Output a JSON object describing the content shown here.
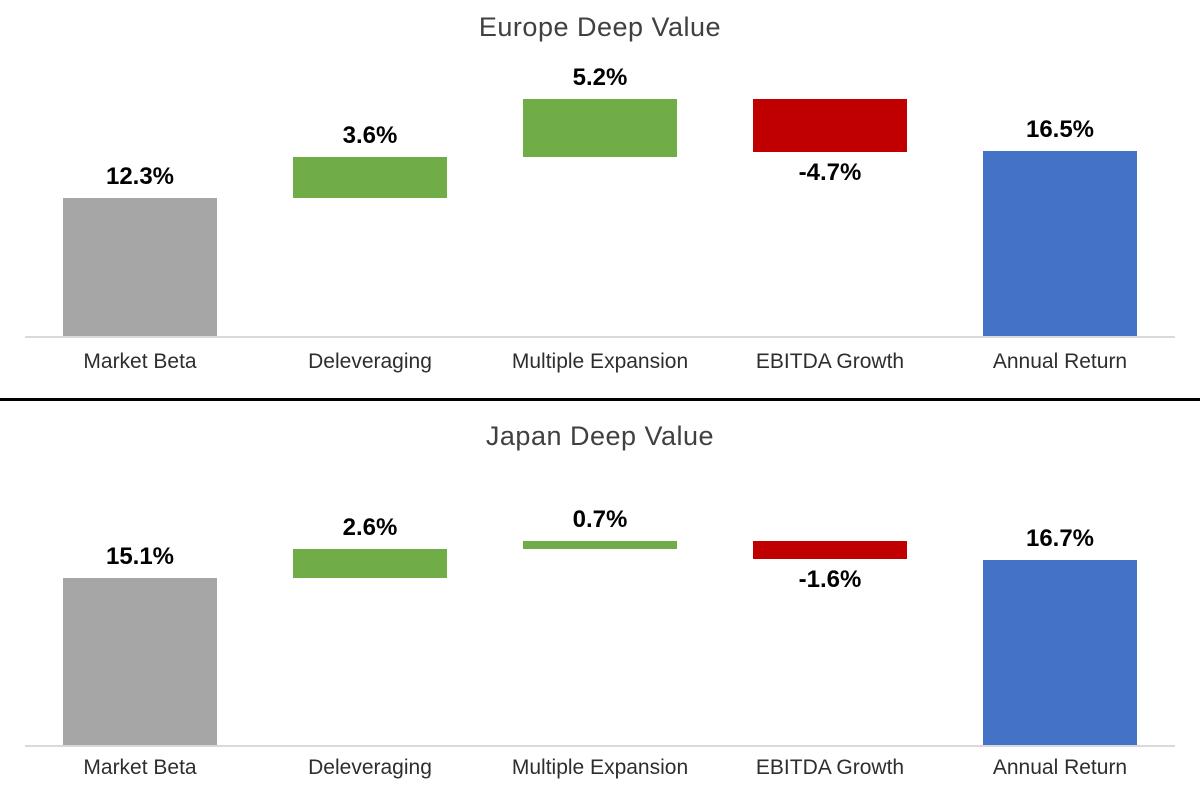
{
  "colors": {
    "base": "#A6A6A6",
    "increase": "#70AD47",
    "decrease": "#C00000",
    "total": "#4472C4",
    "baseline": "#D9D9D9",
    "divider": "#000000"
  },
  "chart_data": [
    {
      "type": "bar",
      "subtype": "waterfall",
      "title": "Europe Deep Value",
      "categories": [
        "Market Beta",
        "Deleveraging",
        "Multiple Expansion",
        "EBITDA Growth",
        "Annual Return"
      ],
      "values": [
        12.3,
        3.6,
        5.2,
        -4.7,
        16.5
      ],
      "value_labels": [
        "12.3%",
        "3.6%",
        "5.2%",
        "-4.7%",
        "16.5%"
      ],
      "kinds": [
        "base",
        "delta",
        "delta",
        "delta",
        "total"
      ],
      "xlabel": "",
      "ylabel": "",
      "ylim": [
        0,
        21.1
      ],
      "grid": false,
      "legend": false
    },
    {
      "type": "bar",
      "subtype": "waterfall",
      "title": "Japan Deep Value",
      "categories": [
        "Market Beta",
        "Deleveraging",
        "Multiple Expansion",
        "EBITDA Growth",
        "Annual Return"
      ],
      "values": [
        15.1,
        2.6,
        0.7,
        -1.6,
        16.7
      ],
      "value_labels": [
        "15.1%",
        "2.6%",
        "0.7%",
        "-1.6%",
        "16.7%"
      ],
      "kinds": [
        "base",
        "delta",
        "delta",
        "delta",
        "total"
      ],
      "xlabel": "",
      "ylabel": "",
      "ylim": [
        0,
        18.4
      ],
      "grid": false,
      "legend": false
    }
  ]
}
